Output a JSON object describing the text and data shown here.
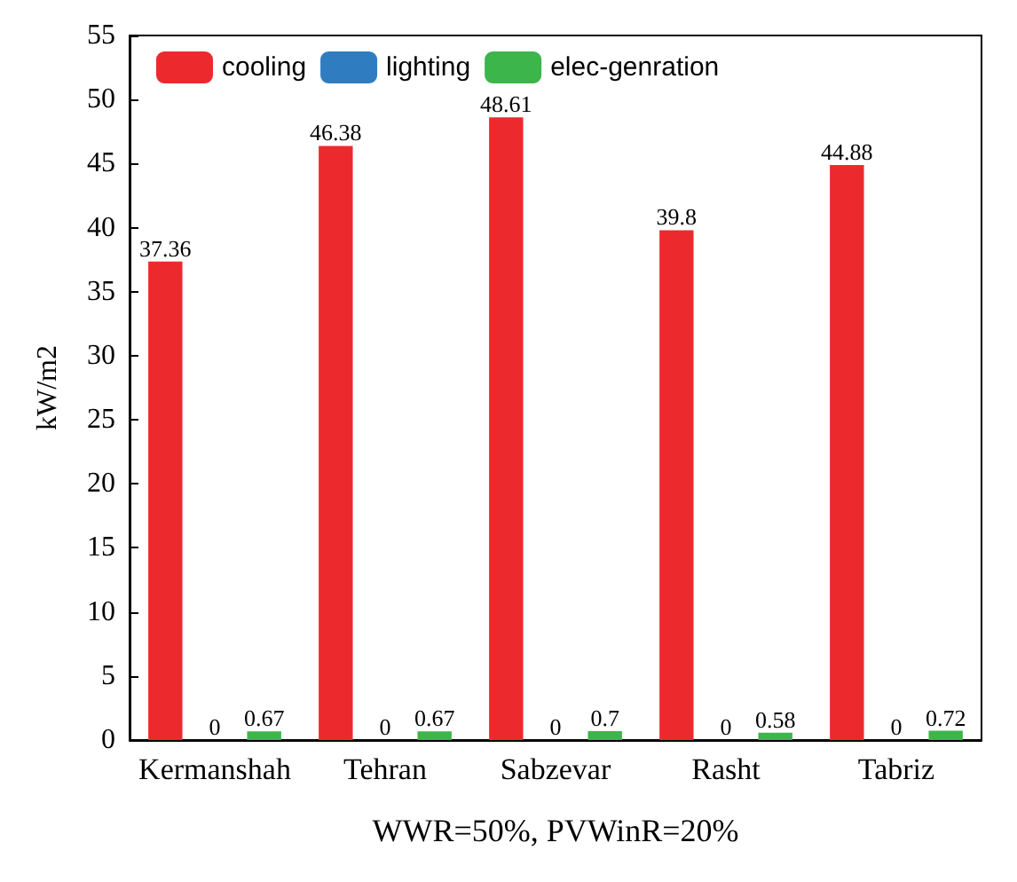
{
  "chart_data": {
    "type": "bar",
    "xlabel": "WWR=50%, PVWinR=20%",
    "ylabel": "kW/m2",
    "categories": [
      "Kermanshah",
      "Tehran",
      "Sabzevar",
      "Rasht",
      "Tabriz"
    ],
    "series": [
      {
        "name": "cooling",
        "color": "#ec2a2e",
        "values": [
          37.36,
          46.38,
          48.61,
          39.8,
          44.88
        ]
      },
      {
        "name": "lighting",
        "color": "#2f7dc0",
        "values": [
          0,
          0,
          0,
          0,
          0
        ]
      },
      {
        "name": "elec-genration",
        "color": "#3cb54a",
        "values": [
          0.67,
          0.67,
          0.7,
          0.58,
          0.72
        ]
      }
    ],
    "ylim": [
      0,
      55
    ],
    "yticks": [
      0,
      5,
      10,
      15,
      20,
      25,
      30,
      35,
      40,
      45,
      50,
      55
    ],
    "data_labels": true,
    "legend": "top left"
  }
}
